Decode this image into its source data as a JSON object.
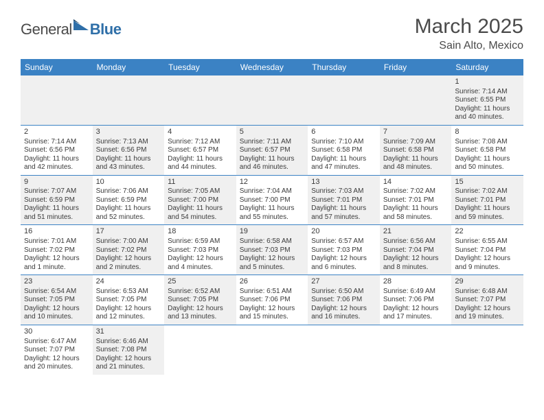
{
  "logo": {
    "text1": "General",
    "text2": "Blue"
  },
  "title": "March 2025",
  "location": "Sain Alto, Mexico",
  "dayNames": [
    "Sunday",
    "Monday",
    "Tuesday",
    "Wednesday",
    "Thursday",
    "Friday",
    "Saturday"
  ],
  "colors": {
    "headerBlue": "#3b82c4",
    "altRow": "#f0f0f0",
    "text": "#4a4a4a",
    "logoBlue": "#2f6fa8"
  },
  "weeks": [
    [
      null,
      null,
      null,
      null,
      null,
      null,
      {
        "n": "1",
        "sr": "Sunrise: 7:14 AM",
        "ss": "Sunset: 6:55 PM",
        "dl": "Daylight: 11 hours and 40 minutes.",
        "alt": true
      }
    ],
    [
      {
        "n": "2",
        "sr": "Sunrise: 7:14 AM",
        "ss": "Sunset: 6:56 PM",
        "dl": "Daylight: 11 hours and 42 minutes."
      },
      {
        "n": "3",
        "sr": "Sunrise: 7:13 AM",
        "ss": "Sunset: 6:56 PM",
        "dl": "Daylight: 11 hours and 43 minutes.",
        "alt": true
      },
      {
        "n": "4",
        "sr": "Sunrise: 7:12 AM",
        "ss": "Sunset: 6:57 PM",
        "dl": "Daylight: 11 hours and 44 minutes."
      },
      {
        "n": "5",
        "sr": "Sunrise: 7:11 AM",
        "ss": "Sunset: 6:57 PM",
        "dl": "Daylight: 11 hours and 46 minutes.",
        "alt": true
      },
      {
        "n": "6",
        "sr": "Sunrise: 7:10 AM",
        "ss": "Sunset: 6:58 PM",
        "dl": "Daylight: 11 hours and 47 minutes."
      },
      {
        "n": "7",
        "sr": "Sunrise: 7:09 AM",
        "ss": "Sunset: 6:58 PM",
        "dl": "Daylight: 11 hours and 48 minutes.",
        "alt": true
      },
      {
        "n": "8",
        "sr": "Sunrise: 7:08 AM",
        "ss": "Sunset: 6:58 PM",
        "dl": "Daylight: 11 hours and 50 minutes."
      }
    ],
    [
      {
        "n": "9",
        "sr": "Sunrise: 7:07 AM",
        "ss": "Sunset: 6:59 PM",
        "dl": "Daylight: 11 hours and 51 minutes.",
        "alt": true
      },
      {
        "n": "10",
        "sr": "Sunrise: 7:06 AM",
        "ss": "Sunset: 6:59 PM",
        "dl": "Daylight: 11 hours and 52 minutes."
      },
      {
        "n": "11",
        "sr": "Sunrise: 7:05 AM",
        "ss": "Sunset: 7:00 PM",
        "dl": "Daylight: 11 hours and 54 minutes.",
        "alt": true
      },
      {
        "n": "12",
        "sr": "Sunrise: 7:04 AM",
        "ss": "Sunset: 7:00 PM",
        "dl": "Daylight: 11 hours and 55 minutes."
      },
      {
        "n": "13",
        "sr": "Sunrise: 7:03 AM",
        "ss": "Sunset: 7:01 PM",
        "dl": "Daylight: 11 hours and 57 minutes.",
        "alt": true
      },
      {
        "n": "14",
        "sr": "Sunrise: 7:02 AM",
        "ss": "Sunset: 7:01 PM",
        "dl": "Daylight: 11 hours and 58 minutes."
      },
      {
        "n": "15",
        "sr": "Sunrise: 7:02 AM",
        "ss": "Sunset: 7:01 PM",
        "dl": "Daylight: 11 hours and 59 minutes.",
        "alt": true
      }
    ],
    [
      {
        "n": "16",
        "sr": "Sunrise: 7:01 AM",
        "ss": "Sunset: 7:02 PM",
        "dl": "Daylight: 12 hours and 1 minute."
      },
      {
        "n": "17",
        "sr": "Sunrise: 7:00 AM",
        "ss": "Sunset: 7:02 PM",
        "dl": "Daylight: 12 hours and 2 minutes.",
        "alt": true
      },
      {
        "n": "18",
        "sr": "Sunrise: 6:59 AM",
        "ss": "Sunset: 7:03 PM",
        "dl": "Daylight: 12 hours and 4 minutes."
      },
      {
        "n": "19",
        "sr": "Sunrise: 6:58 AM",
        "ss": "Sunset: 7:03 PM",
        "dl": "Daylight: 12 hours and 5 minutes.",
        "alt": true
      },
      {
        "n": "20",
        "sr": "Sunrise: 6:57 AM",
        "ss": "Sunset: 7:03 PM",
        "dl": "Daylight: 12 hours and 6 minutes."
      },
      {
        "n": "21",
        "sr": "Sunrise: 6:56 AM",
        "ss": "Sunset: 7:04 PM",
        "dl": "Daylight: 12 hours and 8 minutes.",
        "alt": true
      },
      {
        "n": "22",
        "sr": "Sunrise: 6:55 AM",
        "ss": "Sunset: 7:04 PM",
        "dl": "Daylight: 12 hours and 9 minutes."
      }
    ],
    [
      {
        "n": "23",
        "sr": "Sunrise: 6:54 AM",
        "ss": "Sunset: 7:05 PM",
        "dl": "Daylight: 12 hours and 10 minutes.",
        "alt": true
      },
      {
        "n": "24",
        "sr": "Sunrise: 6:53 AM",
        "ss": "Sunset: 7:05 PM",
        "dl": "Daylight: 12 hours and 12 minutes."
      },
      {
        "n": "25",
        "sr": "Sunrise: 6:52 AM",
        "ss": "Sunset: 7:05 PM",
        "dl": "Daylight: 12 hours and 13 minutes.",
        "alt": true
      },
      {
        "n": "26",
        "sr": "Sunrise: 6:51 AM",
        "ss": "Sunset: 7:06 PM",
        "dl": "Daylight: 12 hours and 15 minutes."
      },
      {
        "n": "27",
        "sr": "Sunrise: 6:50 AM",
        "ss": "Sunset: 7:06 PM",
        "dl": "Daylight: 12 hours and 16 minutes.",
        "alt": true
      },
      {
        "n": "28",
        "sr": "Sunrise: 6:49 AM",
        "ss": "Sunset: 7:06 PM",
        "dl": "Daylight: 12 hours and 17 minutes."
      },
      {
        "n": "29",
        "sr": "Sunrise: 6:48 AM",
        "ss": "Sunset: 7:07 PM",
        "dl": "Daylight: 12 hours and 19 minutes.",
        "alt": true
      }
    ],
    [
      {
        "n": "30",
        "sr": "Sunrise: 6:47 AM",
        "ss": "Sunset: 7:07 PM",
        "dl": "Daylight: 12 hours and 20 minutes."
      },
      {
        "n": "31",
        "sr": "Sunrise: 6:46 AM",
        "ss": "Sunset: 7:08 PM",
        "dl": "Daylight: 12 hours and 21 minutes.",
        "alt": true
      },
      null,
      null,
      null,
      null,
      null
    ]
  ]
}
